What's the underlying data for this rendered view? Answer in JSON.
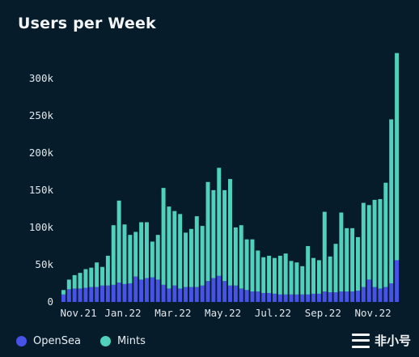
{
  "title": "Users per Week",
  "colors": {
    "background": "#071c2b",
    "opensea": "#4752e6",
    "mints": "#4fd1bd"
  },
  "watermark": {
    "text": "非小号",
    "icon": "feixiaohao-logo-icon"
  },
  "chart_data": {
    "type": "bar",
    "stacked": true,
    "title": "Users per Week",
    "xlabel": "",
    "ylabel": "",
    "ylim": [
      0,
      340000
    ],
    "yticks": [
      0,
      50000,
      100000,
      150000,
      200000,
      250000,
      300000
    ],
    "ytick_labels": [
      "0",
      "50k",
      "100k",
      "150k",
      "200k",
      "250k",
      "300k"
    ],
    "xtick_labels": [
      "Nov.21",
      "Jan.22",
      "Mar.22",
      "May.22",
      "Jul.22",
      "Sep.22",
      "Nov.22"
    ],
    "xtick_positions": [
      3,
      11,
      20,
      29,
      38,
      47,
      56
    ],
    "grid": false,
    "legend": "bottom-left",
    "series": [
      {
        "name": "OpenSea",
        "color": "#4752e6",
        "values": [
          10000,
          17000,
          18000,
          18000,
          19000,
          20000,
          20000,
          22000,
          22000,
          23000,
          26000,
          24000,
          25000,
          34000,
          30000,
          32000,
          33000,
          30000,
          23000,
          18000,
          22000,
          18000,
          20000,
          20000,
          20000,
          22000,
          28000,
          32000,
          35000,
          28000,
          22000,
          22000,
          18000,
          16000,
          14000,
          14000,
          12000,
          12000,
          11000,
          10000,
          10000,
          10000,
          10000,
          10000,
          10000,
          11000,
          11000,
          14000,
          13000,
          13000,
          14000,
          14000,
          14000,
          15000,
          20000,
          30000,
          20000,
          18000,
          20000,
          25000,
          56000
        ]
      },
      {
        "name": "Mints",
        "color": "#4fd1bd",
        "values": [
          6000,
          13000,
          18000,
          21000,
          25000,
          26000,
          33000,
          25000,
          40000,
          80000,
          110000,
          80000,
          65000,
          60000,
          77000,
          75000,
          48000,
          60000,
          130000,
          110000,
          100000,
          100000,
          73000,
          78000,
          95000,
          80000,
          133000,
          118000,
          145000,
          122000,
          143000,
          78000,
          85000,
          68000,
          70000,
          55000,
          48000,
          50000,
          48000,
          52000,
          55000,
          45000,
          43000,
          38000,
          65000,
          48000,
          45000,
          107000,
          48000,
          65000,
          106000,
          85000,
          85000,
          72000,
          113000,
          100000,
          117000,
          120000,
          140000,
          220000,
          278000
        ]
      }
    ]
  },
  "legend": {
    "items": [
      {
        "label": "OpenSea",
        "color": "#4752e6"
      },
      {
        "label": "Mints",
        "color": "#4fd1bd"
      }
    ]
  }
}
